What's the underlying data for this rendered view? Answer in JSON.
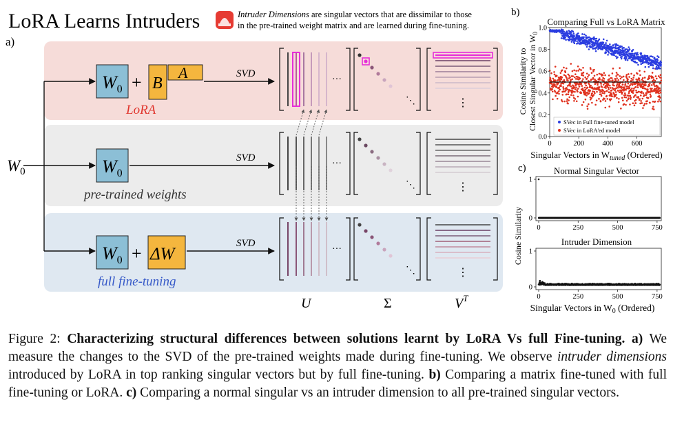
{
  "panel_a": {
    "title": "LoRA Learns Intruders",
    "note_em": "Intruder Dimensions",
    "note_rest": " are singular vectors that are dissimilar to those",
    "note_line2": "in the pre-trained weight matrix and are learned during fine-tuning.",
    "label": "a)",
    "input_label": "W",
    "input_sub": "0",
    "rows": [
      {
        "w0": "W",
        "w0_sub": "0",
        "plus": "+",
        "b": "B",
        "a": "A",
        "svd": "SVD",
        "caption": "LoRA",
        "dots": "···",
        "vdots": "⋮",
        "ddots": "⋱"
      },
      {
        "w0": "W",
        "w0_sub": "0",
        "svd": "SVD",
        "caption": "pre-trained weights",
        "dots": "···",
        "vdots": "⋮",
        "ddots": "⋱"
      },
      {
        "w0": "W",
        "w0_sub": "0",
        "plus": "+",
        "dw": "ΔW",
        "svd": "SVD",
        "caption": "full fine-tuning",
        "dots": "···",
        "vdots": "⋮",
        "ddots": "⋱"
      }
    ],
    "bottom_labels": {
      "u": "U",
      "sigma": "Σ",
      "v": "V",
      "v_sup": "T"
    },
    "colors": {
      "lora_bg": "#f6dcd9",
      "pre_bg": "#ececec",
      "full_bg": "#dfe8f1",
      "w_box": "#8cbfd6",
      "ab_box": "#f4b63e",
      "lora_text": "#e0342c",
      "full_text": "#3558c8",
      "intruder": "#e62ed8"
    }
  },
  "panel_b": {
    "label": "b)",
    "chart_data": {
      "type": "scatter",
      "title": "Comparing Full vs LoRA Matrix",
      "xlabel": "Singular Vectors in W",
      "xlabel_sub": "tuned",
      "xlabel_tail": " (Ordered)",
      "ylabel_line1": "Cosine Similarity to",
      "ylabel_line2": "Closest Singular Vector in W",
      "ylabel_sub": "0",
      "xlim": [
        0,
        768
      ],
      "ylim": [
        0,
        1.0
      ],
      "xticks": [
        "0",
        "200",
        "400",
        "600"
      ],
      "yticks": [
        "0.0",
        "0.2",
        "0.4",
        "0.6",
        "0.8",
        "1.0"
      ],
      "hline": 0.5,
      "legend_position": "lower-right",
      "series": [
        {
          "name": "SVec in Full fine-tuned model",
          "color": "#2b3de0",
          "trend": "from ~0.98 at index 0 declining to ~0.6 at index 768"
        },
        {
          "name": "SVec in LoRA'ed model",
          "color": "#e0321f",
          "trend": "spread 0.1–0.8, centered ~0.45"
        }
      ]
    }
  },
  "panel_c": {
    "label": "c)",
    "ylabel": "Cosine Similarity",
    "chart_data": [
      {
        "type": "scatter",
        "title": "Normal Singular Vector",
        "xlim": [
          0,
          768
        ],
        "ylim": [
          0,
          1
        ],
        "xticks": [
          "0",
          "250",
          "500",
          "750"
        ],
        "yticks": [
          "0",
          "1"
        ],
        "description": "single point at 1 for index 0, all others ≈ 0"
      },
      {
        "type": "scatter",
        "title": "Intruder Dimension",
        "xlim": [
          0,
          768
        ],
        "ylim": [
          0,
          1
        ],
        "xticks": [
          "0",
          "250",
          "500",
          "750"
        ],
        "yticks": [
          "0",
          "1"
        ],
        "description": "all values near 0 (≈0.02–0.15)",
        "xlabel": "Singular Vectors in W",
        "xlabel_sub": "0",
        "xlabel_tail": " (Ordered)"
      }
    ]
  },
  "caption": {
    "lead": "Figure 2: ",
    "bold": "Characterizing structural differences between solutions learnt by LoRA Vs full Fine-tuning.",
    "a_label": "a)",
    "a_text": " We measure the changes to the SVD of the pre-trained weights made during fine-tuning. We observe ",
    "a_em": "intruder dimensions",
    "a_text2": " introduced by LoRA in top ranking singular vectors but by full fine-tuning. ",
    "b_label": "b)",
    "b_text": " Comparing a matrix fine-tuned with full fine-tuning or LoRA. ",
    "c_label": "c)",
    "c_text": " Comparing a normal singular vs an intruder dimension to all pre-trained singular vectors."
  }
}
